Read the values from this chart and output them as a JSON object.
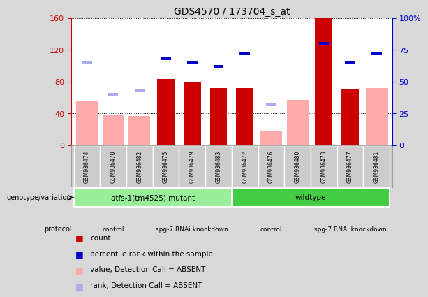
{
  "title": "GDS4570 / 173704_s_at",
  "samples": [
    "GSM936474",
    "GSM936478",
    "GSM936482",
    "GSM936475",
    "GSM936479",
    "GSM936483",
    "GSM936472",
    "GSM936476",
    "GSM936480",
    "GSM936473",
    "GSM936477",
    "GSM936481"
  ],
  "count_values": [
    0,
    0,
    0,
    83,
    80,
    72,
    72,
    0,
    0,
    160,
    70,
    0
  ],
  "count_present": [
    false,
    false,
    false,
    true,
    true,
    true,
    true,
    false,
    false,
    true,
    true,
    false
  ],
  "percentile_values": [
    65,
    40,
    43,
    68,
    65,
    62,
    72,
    32,
    0,
    80,
    65,
    72
  ],
  "percentile_present": [
    false,
    false,
    false,
    true,
    true,
    true,
    true,
    false,
    false,
    true,
    true,
    true
  ],
  "absent_value_values": [
    55,
    38,
    37,
    0,
    0,
    0,
    0,
    18,
    57,
    0,
    0,
    72
  ],
  "absent_value_present": [
    true,
    true,
    true,
    false,
    false,
    false,
    false,
    true,
    true,
    false,
    false,
    true
  ],
  "ylim_left": [
    0,
    160
  ],
  "ylim_right": [
    0,
    100
  ],
  "yticks_left": [
    0,
    40,
    80,
    120,
    160
  ],
  "yticks_right": [
    0,
    25,
    50,
    75,
    100
  ],
  "ytick_labels_left": [
    "0",
    "40",
    "80",
    "120",
    "160"
  ],
  "ytick_labels_right": [
    "0",
    "25",
    "50",
    "75",
    "100%"
  ],
  "left_axis_color": "#cc0000",
  "right_axis_color": "#0000cc",
  "bg_color": "#d8d8d8",
  "plot_bg_color": "#ffffff",
  "grid_color": "#000000",
  "count_color": "#cc0000",
  "percentile_color": "#0000cc",
  "absent_value_color": "#ffaaaa",
  "absent_rank_color": "#aaaaee",
  "sample_cell_color": "#cccccc",
  "genotype_groups": [
    {
      "label": "atfs-1(tm4525) mutant",
      "start": 0,
      "end": 6,
      "color": "#99ee99"
    },
    {
      "label": "wildtype",
      "start": 6,
      "end": 12,
      "color": "#44cc44"
    }
  ],
  "protocol_groups": [
    {
      "label": "control",
      "start": 0,
      "end": 3,
      "color": "#ee88ee"
    },
    {
      "label": "spg-7 RNAi knockdown",
      "start": 3,
      "end": 6,
      "color": "#cc44cc"
    },
    {
      "label": "control",
      "start": 6,
      "end": 9,
      "color": "#ee88ee"
    },
    {
      "label": "spg-7 RNAi knockdown",
      "start": 9,
      "end": 12,
      "color": "#cc44cc"
    }
  ],
  "legend_items": [
    {
      "label": "count",
      "color": "#cc0000"
    },
    {
      "label": "percentile rank within the sample",
      "color": "#0000cc"
    },
    {
      "label": "value, Detection Call = ABSENT",
      "color": "#ffaaaa"
    },
    {
      "label": "rank, Detection Call = ABSENT",
      "color": "#aaaaee"
    }
  ],
  "bar_width": 0.55,
  "genotype_row_label": "genotype/variation",
  "protocol_row_label": "protocol"
}
